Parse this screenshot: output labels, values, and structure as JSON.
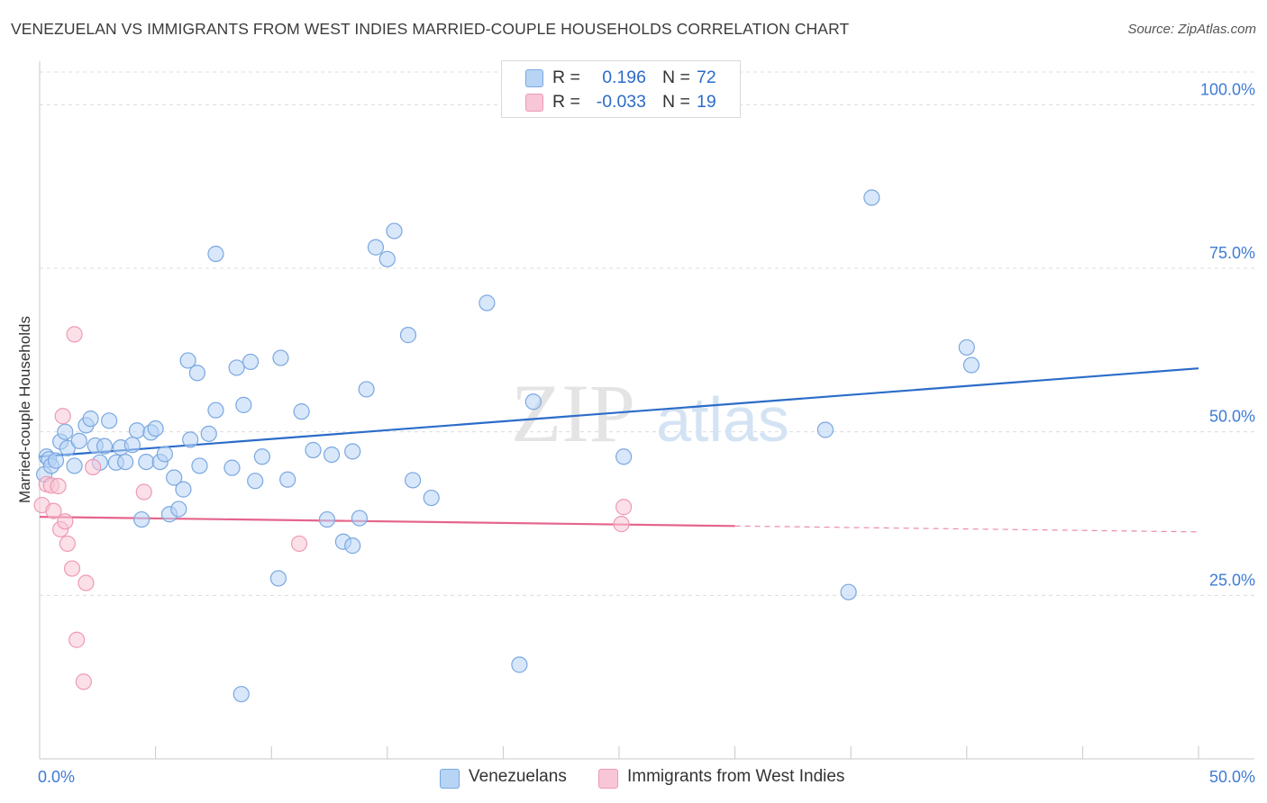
{
  "title": "VENEZUELAN VS IMMIGRANTS FROM WEST INDIES MARRIED-COUPLE HOUSEHOLDS CORRELATION CHART",
  "source": "Source: ZipAtlas.com",
  "watermark": {
    "zip": "ZIP",
    "atlas": "atlas"
  },
  "legend_top": {
    "rows": [
      {
        "r_label": "R =",
        "r_value": "0.196",
        "n_label": "N =",
        "n_value": "72"
      },
      {
        "r_label": "R =",
        "r_value": "-0.033",
        "n_label": "N =",
        "n_value": "19"
      }
    ]
  },
  "colors": {
    "blue_fill": "#b8d4f5",
    "blue_stroke": "#7aa8e0",
    "blue_line": "#2b6cc9",
    "pink_fill": "#f8c6d6",
    "pink_stroke": "#ee9ab5",
    "pink_line": "#e5658c",
    "tick_label": "#3f7bd4",
    "grid": "#dcdcdc"
  },
  "chart_data": {
    "type": "scatter",
    "title": "VENEZUELAN VS IMMIGRANTS FROM WEST INDIES MARRIED-COUPLE HOUSEHOLDS CORRELATION CHART",
    "xlabel": "",
    "ylabel": "Married-couple Households",
    "xlim": [
      0,
      50
    ],
    "ylim": [
      0,
      105
    ],
    "x_tick_labels": [
      "0.0%",
      "50.0%"
    ],
    "y_ticks": [
      25,
      50,
      75,
      100
    ],
    "y_tick_labels": [
      "25.0%",
      "50.0%",
      "75.0%",
      "100.0%"
    ],
    "grid": true,
    "legend": [
      "Venezuelans",
      "Immigrants from West Indies"
    ],
    "series": [
      {
        "name": "Venezuelans",
        "r": 0.196,
        "n": 72,
        "trend": {
          "x": [
            0,
            50
          ],
          "y": [
            46.2,
            59.7
          ]
        },
        "points": [
          [
            0.2,
            43.5
          ],
          [
            0.3,
            46.2
          ],
          [
            0.4,
            45.8
          ],
          [
            0.5,
            44.8
          ],
          [
            0.7,
            45.6
          ],
          [
            0.9,
            48.5
          ],
          [
            1.1,
            50.0
          ],
          [
            1.2,
            47.5
          ],
          [
            1.5,
            44.8
          ],
          [
            1.7,
            48.6
          ],
          [
            2.0,
            51.0
          ],
          [
            2.2,
            52.0
          ],
          [
            2.4,
            47.9
          ],
          [
            2.6,
            45.3
          ],
          [
            2.8,
            47.8
          ],
          [
            3.0,
            51.7
          ],
          [
            3.3,
            45.3
          ],
          [
            3.5,
            47.6
          ],
          [
            3.7,
            45.4
          ],
          [
            4.0,
            48.0
          ],
          [
            4.2,
            50.2
          ],
          [
            4.4,
            36.6
          ],
          [
            4.6,
            45.4
          ],
          [
            4.8,
            49.9
          ],
          [
            5.0,
            50.5
          ],
          [
            5.2,
            45.4
          ],
          [
            5.4,
            46.6
          ],
          [
            5.6,
            37.4
          ],
          [
            5.8,
            43.0
          ],
          [
            6.0,
            38.2
          ],
          [
            6.2,
            41.2
          ],
          [
            6.4,
            60.9
          ],
          [
            6.5,
            48.8
          ],
          [
            6.8,
            59.0
          ],
          [
            6.9,
            44.8
          ],
          [
            7.3,
            49.7
          ],
          [
            7.6,
            53.3
          ],
          [
            7.6,
            77.2
          ],
          [
            8.3,
            44.5
          ],
          [
            8.5,
            59.8
          ],
          [
            8.8,
            54.1
          ],
          [
            8.7,
            9.9
          ],
          [
            9.1,
            60.7
          ],
          [
            9.3,
            42.5
          ],
          [
            9.6,
            46.2
          ],
          [
            10.4,
            61.3
          ],
          [
            10.3,
            27.6
          ],
          [
            10.7,
            42.7
          ],
          [
            11.3,
            53.1
          ],
          [
            11.8,
            47.2
          ],
          [
            12.4,
            36.6
          ],
          [
            12.6,
            46.5
          ],
          [
            13.1,
            33.2
          ],
          [
            13.5,
            32.6
          ],
          [
            13.8,
            36.8
          ],
          [
            13.5,
            47.0
          ],
          [
            14.1,
            56.5
          ],
          [
            14.5,
            78.2
          ],
          [
            15.0,
            76.4
          ],
          [
            15.3,
            80.7
          ],
          [
            15.9,
            64.8
          ],
          [
            16.1,
            42.6
          ],
          [
            16.9,
            39.9
          ],
          [
            19.3,
            69.7
          ],
          [
            20.7,
            14.4
          ],
          [
            21.3,
            54.6
          ],
          [
            25.2,
            46.2
          ],
          [
            33.9,
            50.3
          ],
          [
            34.9,
            25.5
          ],
          [
            35.9,
            85.8
          ],
          [
            40.0,
            62.9
          ],
          [
            40.2,
            60.2
          ]
        ]
      },
      {
        "name": "Immigrants from West Indies",
        "r": -0.033,
        "n": 19,
        "trend": {
          "x": [
            0,
            30
          ],
          "y": [
            37.0,
            35.6
          ]
        },
        "trend_dashed": {
          "x": [
            30,
            50
          ],
          "y": [
            35.6,
            34.7
          ]
        },
        "points": [
          [
            0.1,
            38.8
          ],
          [
            0.3,
            42.0
          ],
          [
            0.5,
            41.8
          ],
          [
            0.6,
            37.9
          ],
          [
            0.8,
            41.7
          ],
          [
            0.9,
            35.1
          ],
          [
            1.1,
            36.3
          ],
          [
            1.2,
            32.9
          ],
          [
            1.0,
            52.4
          ],
          [
            1.4,
            29.1
          ],
          [
            1.5,
            64.9
          ],
          [
            1.6,
            18.2
          ],
          [
            1.9,
            11.8
          ],
          [
            2.0,
            26.9
          ],
          [
            2.3,
            44.6
          ],
          [
            4.5,
            40.8
          ],
          [
            11.2,
            32.9
          ],
          [
            25.1,
            35.9
          ],
          [
            25.2,
            38.5
          ]
        ]
      }
    ]
  }
}
